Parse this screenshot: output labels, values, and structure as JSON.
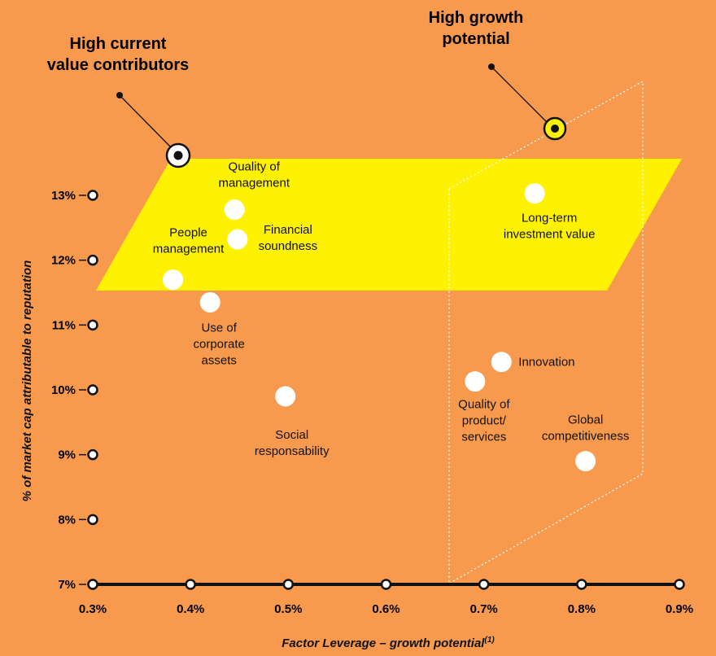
{
  "colors": {
    "background": "#F79A4E",
    "highlight_band": "#FFF200",
    "points": "#FFFFFF",
    "axis": "#111111"
  },
  "callouts": {
    "current": {
      "line1": "High current",
      "line2": "value contributors"
    },
    "growth": {
      "line1": "High growth",
      "line2": "potential"
    }
  },
  "chart_data": {
    "type": "scatter",
    "xlabel": "Factor Leverage – growth potential",
    "xlabel_sup": "(1)",
    "ylabel": "% of market cap attributable to reputation",
    "xlim": [
      0.3,
      0.9
    ],
    "ylim": [
      7,
      13
    ],
    "x_ticks": [
      "0.3%",
      "0.4%",
      "0.5%",
      "0.6%",
      "0.7%",
      "0.8%",
      "0.9%"
    ],
    "y_ticks": [
      "7%",
      "8%",
      "9%",
      "10%",
      "11%",
      "12%",
      "13%"
    ],
    "grid": false,
    "points": [
      {
        "label": "Quality of management",
        "lines": [
          "Quality of",
          "management"
        ],
        "x": 0.445,
        "y": 12.78
      },
      {
        "label": "Financial soundness",
        "lines": [
          "Financial",
          "soundness"
        ],
        "x": 0.448,
        "y": 12.32
      },
      {
        "label": "People management",
        "lines": [
          "People",
          "management"
        ],
        "x": 0.382,
        "y": 11.7
      },
      {
        "label": "Use of corporate assets",
        "lines": [
          "Use of",
          "corporate",
          "assets"
        ],
        "x": 0.42,
        "y": 11.35
      },
      {
        "label": "Social responsability",
        "lines": [
          "Social",
          "responsability"
        ],
        "x": 0.497,
        "y": 9.9
      },
      {
        "label": "Long-term investment value",
        "lines": [
          "Long-term",
          "investment value"
        ],
        "x": 0.752,
        "y": 13.03
      },
      {
        "label": "Innovation",
        "lines": [
          "Innovation"
        ],
        "x": 0.718,
        "y": 10.43
      },
      {
        "label": "Quality of product/services",
        "lines": [
          "Quality of",
          "product/",
          "services"
        ],
        "x": 0.691,
        "y": 10.13
      },
      {
        "label": "Global competitiveness",
        "lines": [
          "Global",
          "competitiveness"
        ],
        "x": 0.804,
        "y": 8.9
      }
    ]
  }
}
